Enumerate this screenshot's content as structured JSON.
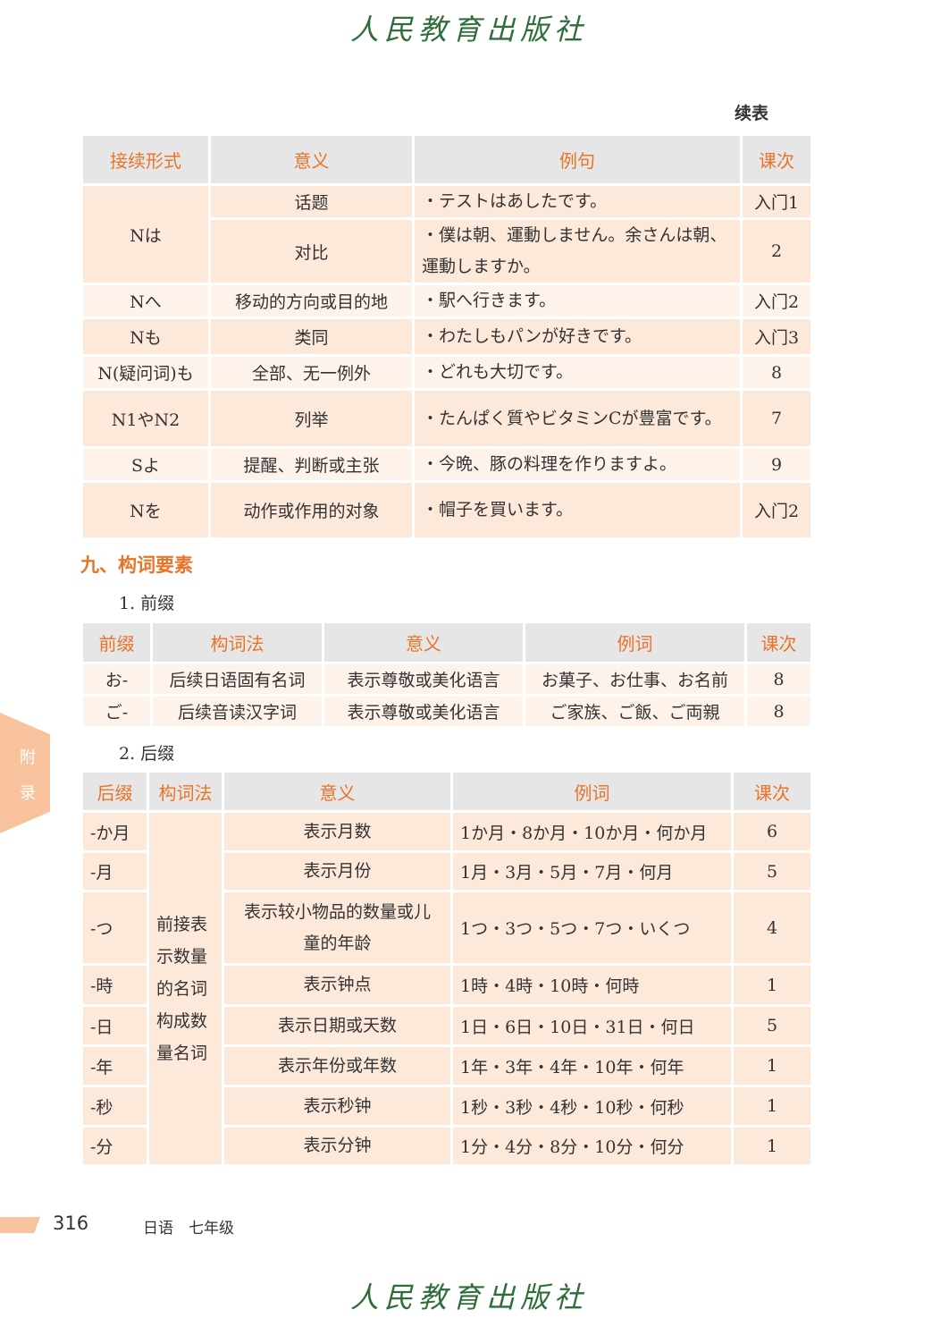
{
  "publisher_logo": "人民教育出版社",
  "continued_label": "续表",
  "table1": {
    "headers": [
      "接续形式",
      "意义",
      "例句",
      "课次"
    ],
    "rows": [
      {
        "form": "Nは",
        "meaning": "话题",
        "example": "・テストはあしたです。",
        "lesson": "入门1"
      },
      {
        "meaning": "对比",
        "example": "・僕は朝、運動しません。余さんは朝、運動しますか。",
        "lesson": "2"
      },
      {
        "form": "Nへ",
        "meaning": "移动的方向或目的地",
        "example": "・駅へ行きます。",
        "lesson": "入门2"
      },
      {
        "form": "Nも",
        "meaning": "类同",
        "example": "・わたしもパンが好きです。",
        "lesson": "入门3"
      },
      {
        "form": "N(疑问词)も",
        "meaning": "全部、无一例外",
        "example": "・どれも大切です。",
        "lesson": "8"
      },
      {
        "form": "N1やN2",
        "meaning": "列举",
        "example": "・たんぱく質やビタミンCが豊富です。",
        "lesson": "7"
      },
      {
        "form": "Sよ",
        "meaning": "提醒、判断或主张",
        "example": "・今晩、豚の料理を作りますよ。",
        "lesson": "9"
      },
      {
        "form": "Nを",
        "meaning": "动作或作用的对象",
        "example": "・帽子を買います。",
        "lesson": "入门2"
      }
    ]
  },
  "section9": {
    "title": "九、构词要素",
    "sub1": "1. 前缀",
    "sub2": "2. 后缀"
  },
  "table2": {
    "headers": [
      "前缀",
      "构词法",
      "意义",
      "例词",
      "课次"
    ],
    "rows": [
      [
        "お-",
        "后续日语固有名词",
        "表示尊敬或美化语言",
        "お菓子、お仕事、お名前",
        "8"
      ],
      [
        "ご-",
        "后续音读汉字词",
        "表示尊敬或美化语言",
        "ご家族、ご飯、ご両親",
        "8"
      ]
    ]
  },
  "table3": {
    "headers": [
      "后缀",
      "构词法",
      "意义",
      "例词",
      "课次"
    ],
    "method": "前接表示数量的名词构成数量名词",
    "rows": [
      [
        "-か月",
        "表示月数",
        "1か月・8か月・10か月・何か月",
        "6"
      ],
      [
        "-月",
        "表示月份",
        "1月・3月・5月・7月・何月",
        "5"
      ],
      [
        "-つ",
        "表示较小物品的数量或儿童的年龄",
        "1つ・3つ・5つ・7つ・いくつ",
        "4"
      ],
      [
        "-時",
        "表示钟点",
        "1時・4時・10時・何時",
        "1"
      ],
      [
        "-日",
        "表示日期或天数",
        "1日・6日・10日・31日・何日",
        "5"
      ],
      [
        "-年",
        "表示年份或年数",
        "1年・3年・4年・10年・何年",
        "1"
      ],
      [
        "-秒",
        "表示秒钟",
        "1秒・3秒・4秒・10秒・何秒",
        "1"
      ],
      [
        "-分",
        "表示分钟",
        "1分・4分・8分・10分・何分",
        "1"
      ]
    ]
  },
  "side_tab": [
    "附",
    "录"
  ],
  "footer": {
    "page_number": "316",
    "book": "日语　七年级"
  },
  "colors": {
    "accent": "#e8742a",
    "header_bg": "#e6e6e6",
    "row_bg": "#fde9da",
    "row_alt_bg": "#fef3ea",
    "logo": "#2f6e3a"
  }
}
